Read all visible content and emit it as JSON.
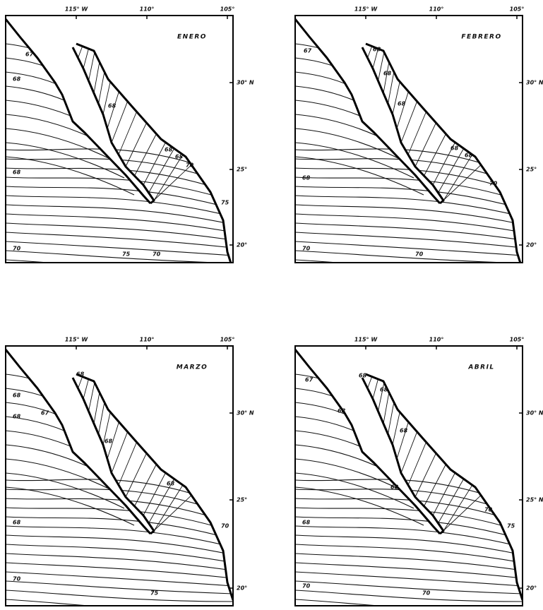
{
  "panels": [
    {
      "title": "ENERO",
      "top_labels": [
        "115° W",
        "110°",
        "105°"
      ],
      "right_labels": [
        "30° N",
        "25°",
        "20°"
      ],
      "contour_labels": [
        "67",
        "68",
        "68",
        "68",
        "68",
        "70",
        "75",
        "68",
        "70",
        "75",
        "70"
      ]
    },
    {
      "title": "FEBRERO",
      "top_labels": [
        "115° W",
        "110°",
        "105°"
      ],
      "right_labels": [
        "30° N",
        "25°",
        "20°"
      ],
      "contour_labels": [
        "67",
        "68",
        "68",
        "68",
        "68",
        "68",
        "70",
        "68",
        "70",
        "70"
      ]
    },
    {
      "title": "MARZO",
      "top_labels": [
        "115° W",
        "110°",
        "105°"
      ],
      "right_labels": [
        "30° N",
        "25°",
        "20°"
      ],
      "contour_labels": [
        "68",
        "68",
        "67",
        "68",
        "68",
        "68",
        "70",
        "68",
        "70",
        "75"
      ]
    },
    {
      "title": "ABRIL",
      "top_labels": [
        "115° W",
        "110°",
        "105°"
      ],
      "right_labels": [
        "30° N",
        "25° N",
        "20°"
      ],
      "contour_labels": [
        "67",
        "68",
        "68",
        "68",
        "68",
        "68",
        "70",
        "75",
        "68",
        "70",
        "70"
      ]
    }
  ]
}
